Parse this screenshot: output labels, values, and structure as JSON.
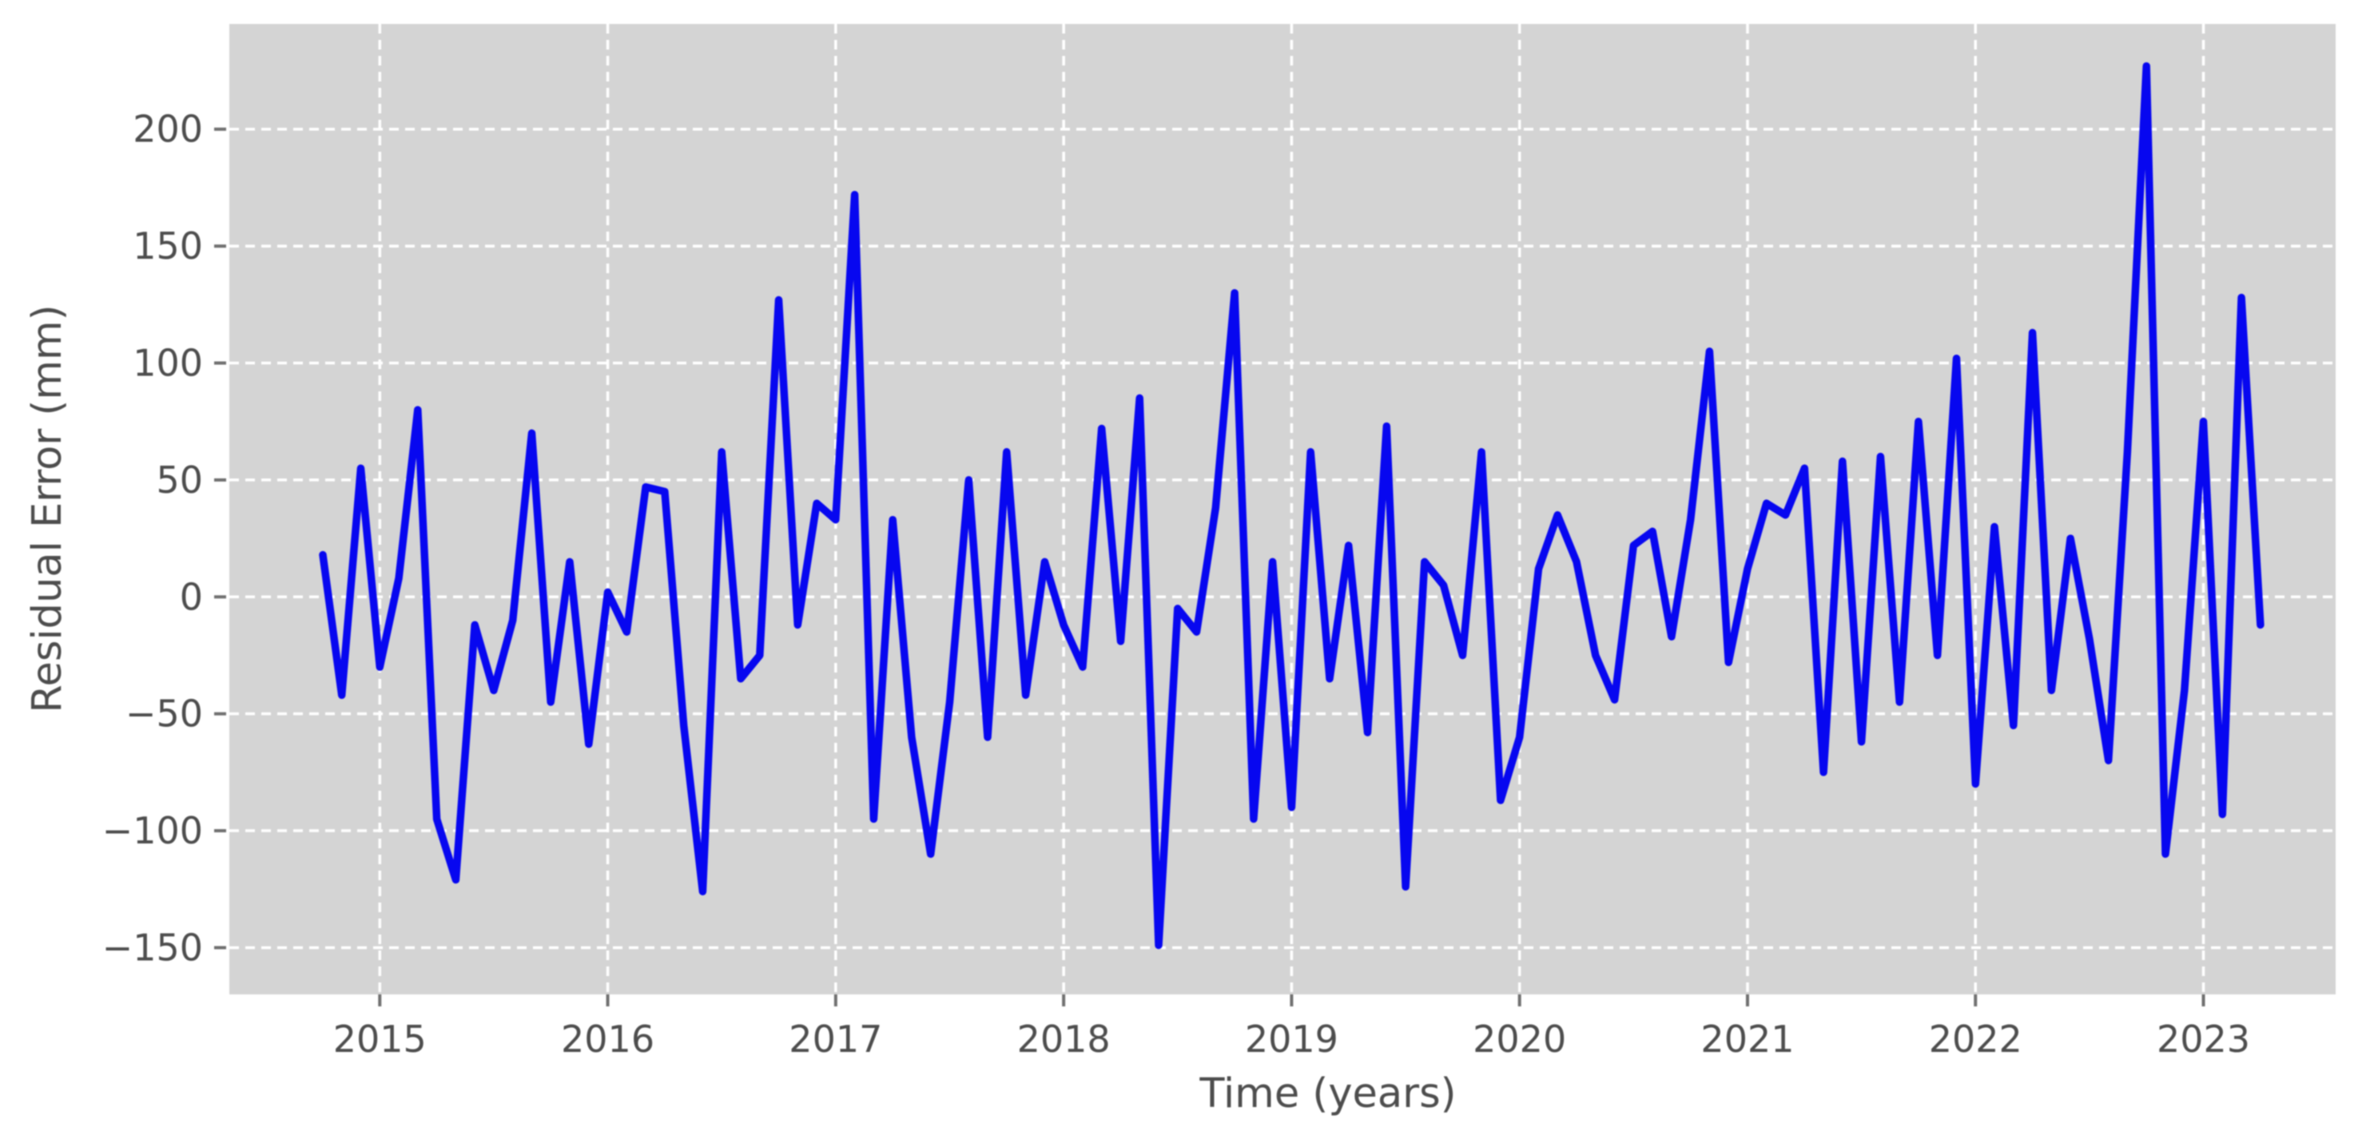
{
  "chart_data": {
    "type": "line",
    "title": "",
    "xlabel": "Time (years)",
    "ylabel": "Residual Error (mm)",
    "series_name": "residual-error",
    "frequency": "monthly",
    "start": {
      "year": 2014,
      "month": 10
    },
    "end": {
      "year": 2023,
      "month": 4
    },
    "values": [
      18,
      -42,
      55,
      -30,
      8,
      80,
      -95,
      -121,
      -12,
      -40,
      -10,
      70,
      -45,
      15,
      -63,
      2,
      -15,
      47,
      45,
      -55,
      -126,
      62,
      -35,
      -25,
      127,
      -12,
      40,
      33,
      172,
      -95,
      33,
      -60,
      -110,
      -45,
      50,
      -60,
      62,
      -42,
      15,
      -12,
      -30,
      72,
      -19,
      85,
      -149,
      -5,
      -15,
      38,
      130,
      -95,
      15,
      -90,
      62,
      -35,
      22,
      -58,
      73,
      -124,
      15,
      5,
      -25,
      62,
      -87,
      -60,
      12,
      35,
      15,
      -25,
      -44,
      22,
      28,
      -17,
      33,
      105,
      -28,
      12,
      40,
      35,
      55,
      -75,
      58,
      -62,
      60,
      -45,
      75,
      -25,
      102,
      -80,
      30,
      -55,
      113,
      -40,
      25,
      -18,
      -70,
      62,
      227,
      -110,
      -40,
      75,
      -93,
      128,
      -12
    ],
    "x_tick_labels": [
      "2015",
      "2016",
      "2017",
      "2018",
      "2019",
      "2020",
      "2021",
      "2022",
      "2023"
    ],
    "x_tick_years": [
      2015,
      2016,
      2017,
      2018,
      2019,
      2020,
      2021,
      2022,
      2023
    ],
    "y_tick_labels": [
      "200",
      "150",
      "100",
      "50",
      "0",
      "−50",
      "−100",
      "−150"
    ],
    "y_tick_values": [
      200,
      150,
      100,
      50,
      0,
      -50,
      -100,
      -150
    ],
    "xlim": [
      2014.34,
      2023.58
    ],
    "ylim": [
      -170,
      245
    ],
    "grid": true,
    "grid_style": "white dashed",
    "legend_position": "none",
    "colors": {
      "line": "#0707f0",
      "plot_background": "#d4d4d4",
      "figure_background": "#ffffff",
      "gridline": "#ffffff",
      "tick_label": "#4d4d4d",
      "axis_label": "#4d4d4d",
      "tick_mark": "#707070"
    }
  }
}
